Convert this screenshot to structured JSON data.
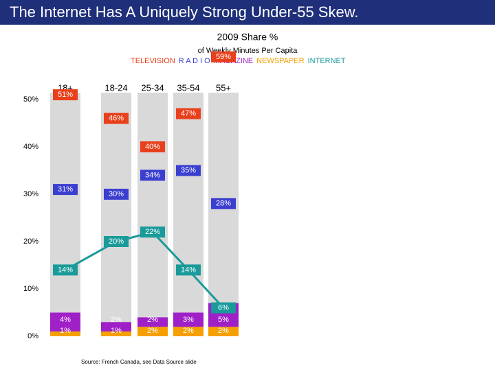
{
  "chart_data": {
    "type": "bar",
    "title": "The Internet Has A Uniquely Strong Under-55 Skew.",
    "subtitle": "2009 Share %",
    "y_label": "of Weekly Minutes Per Capita",
    "source": "Source: French Canada, see Data Source slide",
    "categories": [
      "18+",
      "18-24",
      "25-34",
      "35-54",
      "55+"
    ],
    "ylim": [
      0,
      50
    ],
    "yticks": [
      {
        "value": 0,
        "label": "0%"
      },
      {
        "value": 10,
        "label": "10%"
      },
      {
        "value": 20,
        "label": "20%"
      },
      {
        "value": 30,
        "label": "30%"
      },
      {
        "value": 40,
        "label": "40%"
      },
      {
        "value": 50,
        "label": "50%"
      }
    ],
    "series": [
      {
        "name": "TELEVISION",
        "color": "#e8401c",
        "values": [
          51,
          46,
          40,
          47,
          59
        ],
        "value_labels": [
          "51%",
          "46%",
          "40%",
          "47%",
          "59%"
        ]
      },
      {
        "name": "R A D I O",
        "color": "#3b3fd0",
        "values": [
          31,
          30,
          34,
          35,
          28
        ],
        "value_labels": [
          "31%",
          "30%",
          "34%",
          "35%",
          "28%"
        ]
      },
      {
        "name": "MAGAZINE",
        "color": "#a020c8",
        "values": [
          4,
          2,
          2,
          3,
          5
        ],
        "value_labels": [
          "4%",
          "2%",
          "2%",
          "3%",
          "5%"
        ]
      },
      {
        "name": "NEWSPAPER",
        "color": "#f5a000",
        "values": [
          1,
          1,
          2,
          2,
          2
        ],
        "value_labels": [
          "1%",
          "1%",
          "2%",
          "2%",
          "2%"
        ]
      },
      {
        "name": "INTERNET",
        "color": "#1a9a9a",
        "values": [
          14,
          20,
          22,
          14,
          6
        ],
        "value_labels": [
          "14%",
          "20%",
          "22%",
          "14%",
          "6%"
        ]
      }
    ]
  }
}
